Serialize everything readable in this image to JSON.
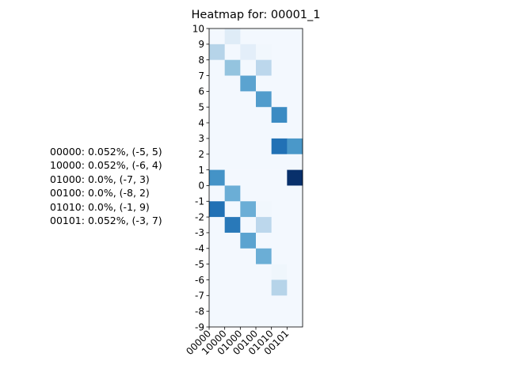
{
  "chart_data": {
    "type": "heatmap",
    "title": "Heatmap for: 00001_1",
    "xlabel": "",
    "ylabel": "",
    "x_categories": [
      "00000",
      "10000",
      "01000",
      "00100",
      "01010",
      "00101"
    ],
    "y_ticks": [
      "10",
      "9",
      "8",
      "7",
      "6",
      "5",
      "4",
      "3",
      "2",
      "1",
      "0",
      "-1",
      "-2",
      "-3",
      "-4",
      "-5",
      "-6",
      "-7",
      "-8",
      "-9"
    ],
    "y_range": [
      -9,
      10
    ],
    "colormap": "Blues",
    "value_range": [
      0,
      1
    ],
    "values": [
      [
        0.02,
        0.12,
        0.02,
        0.02,
        0.02,
        0.02
      ],
      [
        0.3,
        0.02,
        0.1,
        0.03,
        0.02,
        0.02
      ],
      [
        0.02,
        0.4,
        0.02,
        0.28,
        0.02,
        0.02
      ],
      [
        0.02,
        0.02,
        0.55,
        0.02,
        0.02,
        0.02
      ],
      [
        0.02,
        0.02,
        0.02,
        0.58,
        0.02,
        0.02
      ],
      [
        0.02,
        0.02,
        0.02,
        0.02,
        0.65,
        0.02
      ],
      [
        0.02,
        0.02,
        0.02,
        0.02,
        0.02,
        0.02
      ],
      [
        0.02,
        0.02,
        0.02,
        0.02,
        0.75,
        0.6
      ],
      [
        0.02,
        0.02,
        0.02,
        0.02,
        0.02,
        0.02
      ],
      [
        0.62,
        0.02,
        0.02,
        0.02,
        0.02,
        1.0
      ],
      [
        0.02,
        0.5,
        0.02,
        0.02,
        0.02,
        0.02
      ],
      [
        0.75,
        0.02,
        0.5,
        0.03,
        0.02,
        0.02
      ],
      [
        0.02,
        0.72,
        0.02,
        0.28,
        0.02,
        0.02
      ],
      [
        0.02,
        0.02,
        0.55,
        0.02,
        0.02,
        0.02
      ],
      [
        0.02,
        0.02,
        0.02,
        0.5,
        0.02,
        0.02
      ],
      [
        0.02,
        0.02,
        0.02,
        0.02,
        0.04,
        0.02
      ],
      [
        0.02,
        0.02,
        0.02,
        0.02,
        0.3,
        0.02
      ],
      [
        0.02,
        0.02,
        0.02,
        0.02,
        0.02,
        0.02
      ],
      [
        0.02,
        0.02,
        0.02,
        0.02,
        0.02,
        0.02
      ]
    ],
    "annotations": [
      "00000: 0.052%, (-5, 5)",
      "10000: 0.052%, (-6, 4)",
      "01000: 0.0%, (-7, 3)",
      "00100: 0.0%, (-8, 2)",
      "01010: 0.0%, (-1, 9)",
      "00101: 0.052%, (-3, 7)"
    ]
  }
}
